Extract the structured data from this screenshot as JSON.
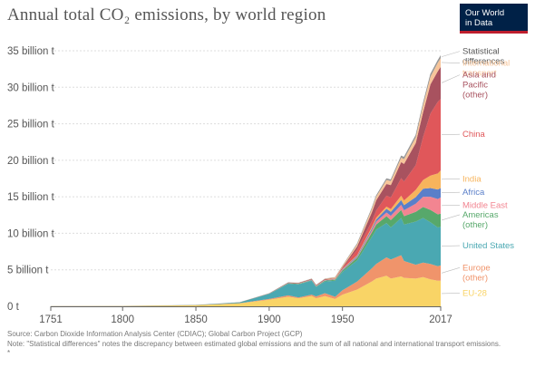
{
  "header": {
    "title": "Annual total CO₂ emissions, by world region",
    "logo_line1": "Our World",
    "logo_line2": "in Data"
  },
  "footer": {
    "source": "Source: Carbon Dioxide Information Analysis Center (CDIAC); Global Carbon Project (GCP)",
    "note": "Note: \"Statistical differences\" notes the discrepancy between estimated global emissions and the sum of all national and international transport emissions.",
    "extra": "*"
  },
  "chart_data": {
    "type": "area",
    "stacked": true,
    "title": "Annual total CO₂ emissions, by world region",
    "xlabel": "",
    "ylabel": "",
    "xlim": [
      1751,
      2017
    ],
    "ylim": [
      0,
      35
    ],
    "y_unit": "billion t",
    "x_ticks": [
      "1751",
      "1800",
      "1850",
      "1900",
      "1950",
      "2017"
    ],
    "y_ticks": [
      "0 t",
      "5 billion t",
      "10 billion t",
      "15 billion t",
      "20 billion t",
      "25 billion t",
      "30 billion t",
      "35 billion t"
    ],
    "grid": "horizontal dotted",
    "legend_position": "right, inline labels",
    "x": [
      1751,
      1800,
      1850,
      1880,
      1900,
      1913,
      1920,
      1929,
      1932,
      1938,
      1945,
      1950,
      1960,
      1970,
      1973,
      1980,
      1983,
      1990,
      1992,
      2000,
      2005,
      2010,
      2015,
      2017
    ],
    "series": [
      {
        "name": "EU-28",
        "color": "#f9d466",
        "values": [
          0.01,
          0.03,
          0.15,
          0.4,
          0.9,
          1.3,
          1.1,
          1.4,
          1.1,
          1.4,
          1.0,
          1.6,
          2.3,
          3.4,
          3.8,
          4.2,
          3.8,
          4.1,
          3.9,
          3.8,
          4.0,
          3.7,
          3.5,
          3.5
        ]
      },
      {
        "name": "Europe (other)",
        "color": "#f0946b",
        "values": [
          0.0,
          0.0,
          0.01,
          0.03,
          0.1,
          0.2,
          0.1,
          0.2,
          0.25,
          0.4,
          0.3,
          0.6,
          1.1,
          1.8,
          2.0,
          2.5,
          2.6,
          2.9,
          2.3,
          1.9,
          2.0,
          2.1,
          2.0,
          2.1
        ]
      },
      {
        "name": "United States",
        "color": "#4aa8b2",
        "values": [
          0.0,
          0.0,
          0.01,
          0.1,
          0.7,
          1.6,
          1.8,
          1.9,
          1.3,
          1.6,
          2.2,
          2.5,
          2.9,
          4.3,
          4.7,
          4.7,
          4.4,
          5.1,
          5.0,
          5.9,
          6.1,
          5.7,
          5.3,
          5.3
        ]
      },
      {
        "name": "Americas (other)",
        "color": "#57a86b",
        "values": [
          0.0,
          0.0,
          0.0,
          0.01,
          0.03,
          0.05,
          0.06,
          0.08,
          0.07,
          0.1,
          0.12,
          0.2,
          0.35,
          0.6,
          0.7,
          0.95,
          1.0,
          1.1,
          1.15,
          1.35,
          1.5,
          1.7,
          1.8,
          1.8
        ]
      },
      {
        "name": "Middle East",
        "color": "#f28591",
        "values": [
          0.0,
          0.0,
          0.0,
          0.0,
          0.0,
          0.0,
          0.01,
          0.01,
          0.01,
          0.02,
          0.02,
          0.05,
          0.1,
          0.3,
          0.4,
          0.5,
          0.6,
          0.7,
          0.8,
          1.1,
          1.4,
          1.8,
          2.1,
          2.2
        ]
      },
      {
        "name": "Africa",
        "color": "#5a7fc9",
        "values": [
          0.0,
          0.0,
          0.0,
          0.0,
          0.01,
          0.02,
          0.02,
          0.03,
          0.03,
          0.04,
          0.05,
          0.1,
          0.15,
          0.25,
          0.3,
          0.5,
          0.55,
          0.65,
          0.7,
          0.9,
          1.1,
          1.2,
          1.3,
          1.3
        ]
      },
      {
        "name": "India",
        "color": "#f7b45c",
        "values": [
          0.0,
          0.0,
          0.0,
          0.0,
          0.01,
          0.02,
          0.03,
          0.03,
          0.03,
          0.04,
          0.06,
          0.07,
          0.1,
          0.2,
          0.22,
          0.3,
          0.35,
          0.6,
          0.65,
          1.0,
          1.2,
          1.7,
          2.2,
          2.4
        ]
      },
      {
        "name": "China",
        "color": "#e0575a",
        "values": [
          0.0,
          0.0,
          0.0,
          0.0,
          0.0,
          0.01,
          0.01,
          0.01,
          0.01,
          0.02,
          0.03,
          0.08,
          0.8,
          0.8,
          1.0,
          1.5,
          1.6,
          2.4,
          2.6,
          3.4,
          5.9,
          8.5,
          9.8,
          9.8
        ]
      },
      {
        "name": "Asia and Pacific (other)",
        "color": "#a8525f",
        "values": [
          0.0,
          0.0,
          0.0,
          0.0,
          0.02,
          0.05,
          0.06,
          0.08,
          0.08,
          0.1,
          0.05,
          0.15,
          0.4,
          1.2,
          1.4,
          1.6,
          1.7,
          2.2,
          2.4,
          3.0,
          3.4,
          4.0,
          4.2,
          4.4
        ]
      },
      {
        "name": "International transport",
        "color": "#f7c59a",
        "values": [
          0.0,
          0.0,
          0.0,
          0.0,
          0.0,
          0.01,
          0.02,
          0.04,
          0.04,
          0.05,
          0.15,
          0.2,
          0.3,
          0.45,
          0.5,
          0.55,
          0.55,
          0.6,
          0.65,
          0.8,
          0.95,
          1.05,
          1.15,
          1.2
        ]
      },
      {
        "name": "Statistical differences",
        "color": "#9a9a9a",
        "values": [
          0.0,
          0.0,
          0.0,
          0.0,
          0.0,
          0.0,
          0.0,
          0.0,
          0.0,
          0.0,
          0.0,
          0.0,
          0.1,
          0.15,
          0.15,
          0.2,
          0.2,
          0.25,
          0.3,
          0.3,
          0.3,
          0.35,
          0.35,
          0.35
        ]
      }
    ],
    "colors": {
      "text": "#555555",
      "label_text_default": "#555555",
      "axis": "#666666",
      "grid": "#dddddd"
    }
  }
}
